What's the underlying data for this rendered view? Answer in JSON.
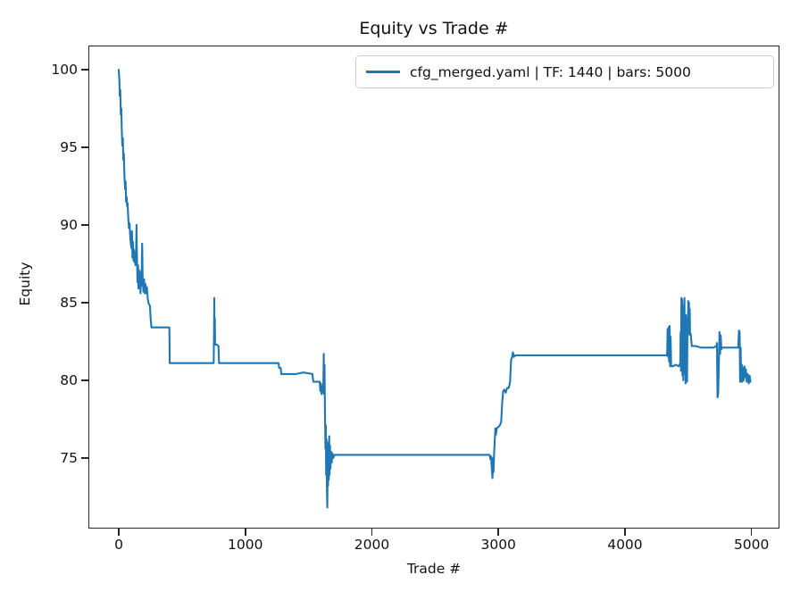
{
  "title": "Equity vs Trade #",
  "colors": {
    "line": "#1f77b4",
    "axis": "#262626",
    "background": "#ffffff",
    "legend_border": "#cccccc"
  },
  "legend": {
    "position": "upper right",
    "entries": [
      {
        "label": "cfg_merged.yaml | TF: 1440 | bars: 5000",
        "color": "#1f77b4"
      }
    ]
  },
  "chart_data": {
    "type": "line",
    "title": "Equity vs Trade #",
    "xlabel": "Trade #",
    "ylabel": "Equity",
    "xlim": [
      -240,
      5221
    ],
    "ylim": [
      70.45,
      101.55
    ],
    "x_ticks": [
      0,
      1000,
      2000,
      3000,
      4000,
      5000
    ],
    "x_tick_labels": [
      "0",
      "1000",
      "2000",
      "3000",
      "4000",
      "5000"
    ],
    "y_ticks": [
      75,
      80,
      85,
      90,
      95,
      100
    ],
    "y_tick_labels": [
      "75",
      "80",
      "85",
      "90",
      "95",
      "100"
    ],
    "grid": false,
    "legend_position": "upper right",
    "series": [
      {
        "name": "cfg_merged.yaml | TF: 1440 | bars: 5000",
        "color": "#1f77b4",
        "points": [
          [
            0,
            100
          ],
          [
            5,
            99.3
          ],
          [
            8,
            98.3
          ],
          [
            12,
            98.7
          ],
          [
            16,
            97.1
          ],
          [
            20,
            97.5
          ],
          [
            24,
            96.1
          ],
          [
            28,
            95.1
          ],
          [
            32,
            95.6
          ],
          [
            36,
            94.2
          ],
          [
            40,
            94.6
          ],
          [
            45,
            93.1
          ],
          [
            50,
            92.3
          ],
          [
            54,
            92.8
          ],
          [
            58,
            91.5
          ],
          [
            62,
            91.8
          ],
          [
            66,
            91.2
          ],
          [
            70,
            91.4
          ],
          [
            75,
            90.5
          ],
          [
            80,
            89.8
          ],
          [
            85,
            90.1
          ],
          [
            90,
            89.3
          ],
          [
            95,
            88.8
          ],
          [
            100,
            88.5
          ],
          [
            104,
            89.6
          ],
          [
            108,
            87.9
          ],
          [
            112,
            88.9
          ],
          [
            116,
            87.7
          ],
          [
            120,
            88.4
          ],
          [
            124,
            87.6
          ],
          [
            128,
            88.2
          ],
          [
            132,
            87.4
          ],
          [
            136,
            88.0
          ],
          [
            140,
            90.0
          ],
          [
            144,
            87.9
          ],
          [
            148,
            86.3
          ],
          [
            152,
            87.4
          ],
          [
            156,
            85.9
          ],
          [
            160,
            87.1
          ],
          [
            164,
            86.0
          ],
          [
            168,
            86.7
          ],
          [
            172,
            85.6
          ],
          [
            176,
            87.0
          ],
          [
            180,
            86.1
          ],
          [
            185,
            88.8
          ],
          [
            190,
            86.3
          ],
          [
            195,
            85.7
          ],
          [
            200,
            86.5
          ],
          [
            205,
            85.6
          ],
          [
            210,
            86.2
          ],
          [
            216,
            85.6
          ],
          [
            222,
            86.0
          ],
          [
            230,
            85.2
          ],
          [
            238,
            84.9
          ],
          [
            246,
            84.8
          ],
          [
            252,
            84.0
          ],
          [
            258,
            83.4
          ],
          [
            300,
            83.4
          ],
          [
            350,
            83.4
          ],
          [
            400,
            83.4
          ],
          [
            403,
            81.1
          ],
          [
            500,
            81.1
          ],
          [
            600,
            81.1
          ],
          [
            700,
            81.1
          ],
          [
            750,
            81.1
          ],
          [
            753,
            83.0
          ],
          [
            755,
            85.3
          ],
          [
            757,
            82.5
          ],
          [
            759,
            84.0
          ],
          [
            761,
            82.3
          ],
          [
            775,
            82.3
          ],
          [
            788,
            82.2
          ],
          [
            792,
            81.1
          ],
          [
            900,
            81.1
          ],
          [
            1000,
            81.1
          ],
          [
            1100,
            81.1
          ],
          [
            1200,
            81.1
          ],
          [
            1263,
            81.1
          ],
          [
            1267,
            80.8
          ],
          [
            1280,
            80.8
          ],
          [
            1284,
            80.4
          ],
          [
            1300,
            80.4
          ],
          [
            1400,
            80.4
          ],
          [
            1460,
            80.5
          ],
          [
            1530,
            80.4
          ],
          [
            1537,
            79.9
          ],
          [
            1570,
            79.9
          ],
          [
            1588,
            79.9
          ],
          [
            1593,
            79.3
          ],
          [
            1598,
            79.8
          ],
          [
            1603,
            79.1
          ],
          [
            1608,
            79.6
          ],
          [
            1613,
            79.2
          ],
          [
            1617,
            79.9
          ],
          [
            1620,
            81.7
          ],
          [
            1623,
            79.1
          ],
          [
            1626,
            81.0
          ],
          [
            1629,
            78.3
          ],
          [
            1633,
            75.6
          ],
          [
            1636,
            77.1
          ],
          [
            1639,
            73.9
          ],
          [
            1642,
            76.2
          ],
          [
            1645,
            72.7
          ],
          [
            1648,
            71.8
          ],
          [
            1651,
            75.2
          ],
          [
            1654,
            73.2
          ],
          [
            1657,
            76.0
          ],
          [
            1660,
            73.6
          ],
          [
            1663,
            76.4
          ],
          [
            1666,
            73.9
          ],
          [
            1669,
            75.8
          ],
          [
            1673,
            74.3
          ],
          [
            1678,
            75.4
          ],
          [
            1683,
            74.7
          ],
          [
            1688,
            75.3
          ],
          [
            1695,
            75.0
          ],
          [
            1705,
            75.2
          ],
          [
            1800,
            75.2
          ],
          [
            2000,
            75.2
          ],
          [
            2200,
            75.2
          ],
          [
            2400,
            75.2
          ],
          [
            2600,
            75.2
          ],
          [
            2800,
            75.2
          ],
          [
            2930,
            75.2
          ],
          [
            2938,
            74.9
          ],
          [
            2943,
            75.1
          ],
          [
            2948,
            74.3
          ],
          [
            2953,
            73.7
          ],
          [
            2958,
            75.0
          ],
          [
            2962,
            74.1
          ],
          [
            2966,
            75.3
          ],
          [
            2971,
            76.1
          ],
          [
            2976,
            76.9
          ],
          [
            2981,
            76.5
          ],
          [
            2987,
            76.9
          ],
          [
            3000,
            77.0
          ],
          [
            3012,
            77.1
          ],
          [
            3022,
            77.3
          ],
          [
            3030,
            78.6
          ],
          [
            3038,
            79.3
          ],
          [
            3048,
            79.4
          ],
          [
            3058,
            79.2
          ],
          [
            3068,
            79.5
          ],
          [
            3082,
            79.5
          ],
          [
            3092,
            79.9
          ],
          [
            3100,
            81.3
          ],
          [
            3108,
            81.5
          ],
          [
            3115,
            81.8
          ],
          [
            3122,
            81.5
          ],
          [
            3135,
            81.6
          ],
          [
            3300,
            81.6
          ],
          [
            3500,
            81.6
          ],
          [
            3700,
            81.6
          ],
          [
            3900,
            81.6
          ],
          [
            4100,
            81.6
          ],
          [
            4250,
            81.6
          ],
          [
            4330,
            81.6
          ],
          [
            4334,
            81.8
          ],
          [
            4337,
            83.3
          ],
          [
            4341,
            81.5
          ],
          [
            4345,
            83.4
          ],
          [
            4349,
            81.2
          ],
          [
            4353,
            83.5
          ],
          [
            4357,
            80.9
          ],
          [
            4361,
            82.8
          ],
          [
            4365,
            80.9
          ],
          [
            4380,
            80.9
          ],
          [
            4400,
            81.0
          ],
          [
            4425,
            80.9
          ],
          [
            4437,
            81.1
          ],
          [
            4440,
            83.1
          ],
          [
            4443,
            80.6
          ],
          [
            4446,
            85.3
          ],
          [
            4449,
            83.5
          ],
          [
            4452,
            85.2
          ],
          [
            4455,
            80.3
          ],
          [
            4458,
            84.8
          ],
          [
            4461,
            80.0
          ],
          [
            4464,
            84.5
          ],
          [
            4467,
            83.6
          ],
          [
            4470,
            85.3
          ],
          [
            4473,
            80.4
          ],
          [
            4476,
            83.2
          ],
          [
            4479,
            79.8
          ],
          [
            4482,
            84.2
          ],
          [
            4485,
            83.1
          ],
          [
            4488,
            84.0
          ],
          [
            4491,
            79.9
          ],
          [
            4494,
            83.5
          ],
          [
            4497,
            82.9
          ],
          [
            4500,
            85.1
          ],
          [
            4503,
            83.2
          ],
          [
            4506,
            85.0
          ],
          [
            4509,
            83.0
          ],
          [
            4512,
            84.6
          ],
          [
            4515,
            82.9
          ],
          [
            4520,
            83.0
          ],
          [
            4528,
            82.2
          ],
          [
            4560,
            82.2
          ],
          [
            4600,
            82.1
          ],
          [
            4650,
            82.1
          ],
          [
            4700,
            82.1
          ],
          [
            4722,
            82.2
          ],
          [
            4727,
            82.4
          ],
          [
            4731,
            78.9
          ],
          [
            4736,
            79.1
          ],
          [
            4741,
            80.6
          ],
          [
            4747,
            83.1
          ],
          [
            4752,
            81.7
          ],
          [
            4757,
            82.9
          ],
          [
            4762,
            82.0
          ],
          [
            4770,
            82.1
          ],
          [
            4800,
            82.1
          ],
          [
            4850,
            82.1
          ],
          [
            4895,
            82.1
          ],
          [
            4901,
            83.2
          ],
          [
            4906,
            83.1
          ],
          [
            4910,
            79.9
          ],
          [
            4914,
            82.1
          ],
          [
            4918,
            79.9
          ],
          [
            4923,
            81.0
          ],
          [
            4928,
            79.9
          ],
          [
            4933,
            80.8
          ],
          [
            4938,
            80.0
          ],
          [
            4944,
            80.9
          ],
          [
            4950,
            80.2
          ],
          [
            4956,
            80.7
          ],
          [
            4962,
            79.9
          ],
          [
            4970,
            80.4
          ],
          [
            4978,
            79.8
          ],
          [
            4985,
            80.3
          ],
          [
            4992,
            79.9
          ]
        ]
      }
    ]
  }
}
